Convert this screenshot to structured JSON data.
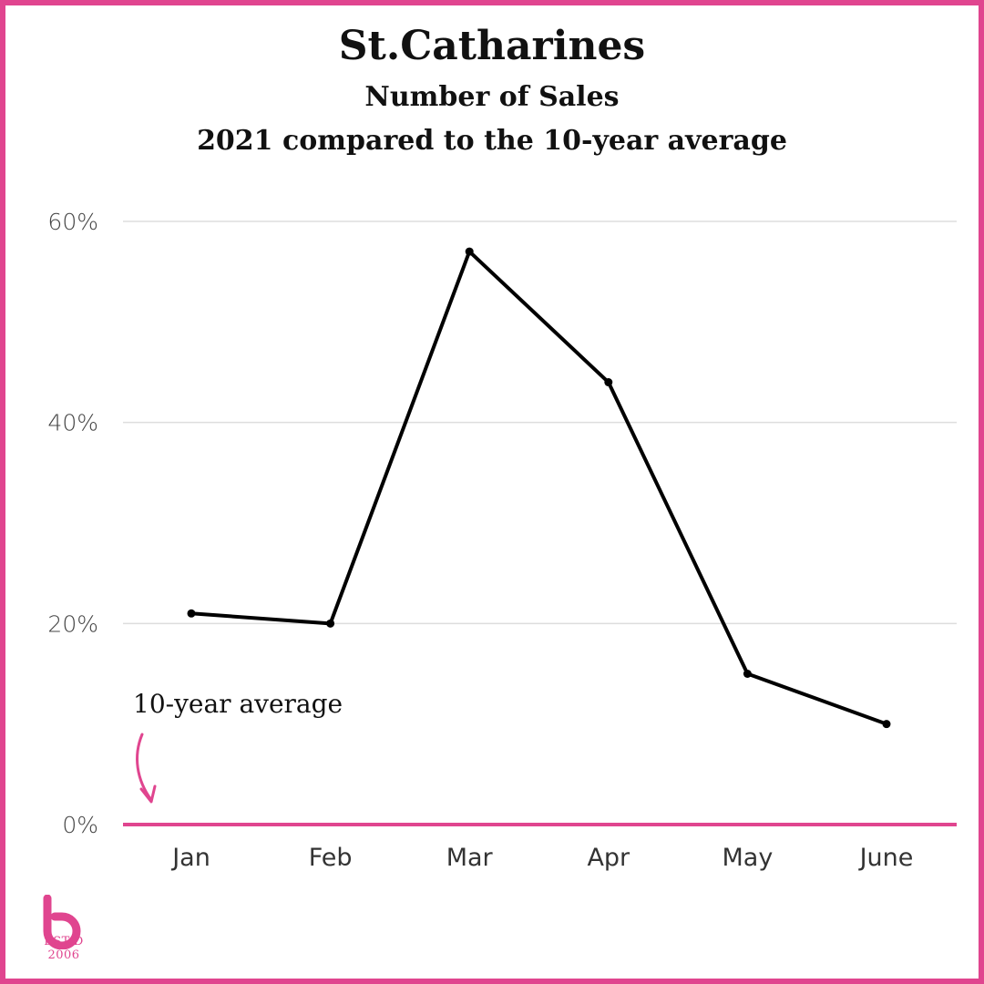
{
  "chart_data": {
    "type": "line",
    "title": "St.Catharines",
    "subtitle_1": "Number of Sales",
    "subtitle_2": "2021 compared to the 10-year average",
    "categories": [
      "Jan",
      "Feb",
      "Mar",
      "Apr",
      "May",
      "June"
    ],
    "values": [
      21,
      20,
      57,
      44,
      15,
      10
    ],
    "y_unit": "%",
    "ylim": [
      0,
      60
    ],
    "yticks": [
      "0%",
      "20%",
      "40%",
      "60%"
    ],
    "ytick_values": [
      0,
      20,
      40,
      60
    ],
    "grid": true,
    "baseline_label": "10-year average",
    "colors": {
      "line": "#000000",
      "baseline": "#e0458f",
      "grid": "#dddddd",
      "border": "#e0458f"
    }
  },
  "logo": {
    "text": "EST'D 2006",
    "icon": "brand-b-icon"
  }
}
